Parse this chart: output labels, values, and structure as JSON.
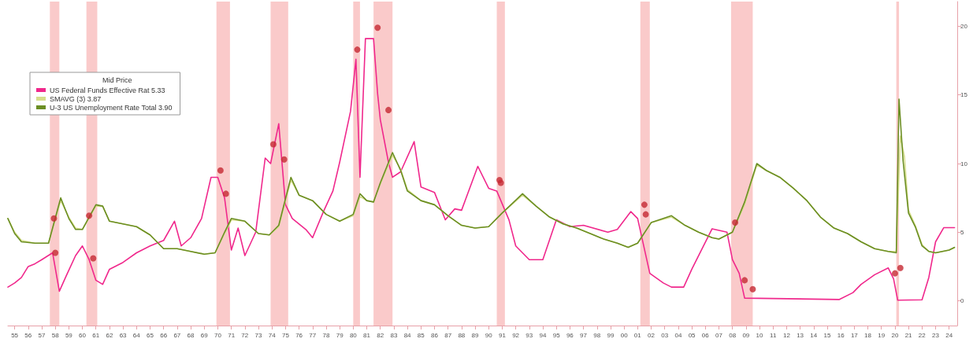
{
  "chart_data": {
    "type": "line",
    "legend_title": "Mid Price",
    "legend": "top left",
    "grid": false,
    "marker": "none",
    "line_style": "solid",
    "tick_labels": "xy",
    "xlim": [
      1954.5,
      2024.6
    ],
    "ylim": [
      -1.8,
      21.8
    ],
    "yticks": [
      0,
      5,
      10,
      15,
      20
    ],
    "xticks": [
      {
        "value": 1955,
        "label": "55"
      },
      {
        "value": 1956,
        "label": "56"
      },
      {
        "value": 1957,
        "label": "57"
      },
      {
        "value": 1958,
        "label": "58"
      },
      {
        "value": 1959,
        "label": "59"
      },
      {
        "value": 1960,
        "label": "60"
      },
      {
        "value": 1961,
        "label": "61"
      },
      {
        "value": 1962,
        "label": "62"
      },
      {
        "value": 1963,
        "label": "63"
      },
      {
        "value": 1964,
        "label": "64"
      },
      {
        "value": 1965,
        "label": "65"
      },
      {
        "value": 1966,
        "label": "66"
      },
      {
        "value": 1967,
        "label": "67"
      },
      {
        "value": 1968,
        "label": "68"
      },
      {
        "value": 1969,
        "label": "69"
      },
      {
        "value": 1970,
        "label": "70"
      },
      {
        "value": 1971,
        "label": "71"
      },
      {
        "value": 1972,
        "label": "72"
      },
      {
        "value": 1973,
        "label": "73"
      },
      {
        "value": 1974,
        "label": "74"
      },
      {
        "value": 1975,
        "label": "75"
      },
      {
        "value": 1976,
        "label": "76"
      },
      {
        "value": 1977,
        "label": "77"
      },
      {
        "value": 1978,
        "label": "78"
      },
      {
        "value": 1979,
        "label": "79"
      },
      {
        "value": 1980,
        "label": "80"
      },
      {
        "value": 1981,
        "label": "81"
      },
      {
        "value": 1982,
        "label": "82"
      },
      {
        "value": 1983,
        "label": "83"
      },
      {
        "value": 1984,
        "label": "84"
      },
      {
        "value": 1985,
        "label": "85"
      },
      {
        "value": 1986,
        "label": "86"
      },
      {
        "value": 1987,
        "label": "87"
      },
      {
        "value": 1988,
        "label": "88"
      },
      {
        "value": 1989,
        "label": "89"
      },
      {
        "value": 1990,
        "label": "90"
      },
      {
        "value": 1991,
        "label": "91"
      },
      {
        "value": 1992,
        "label": "92"
      },
      {
        "value": 1993,
        "label": "93"
      },
      {
        "value": 1994,
        "label": "94"
      },
      {
        "value": 1995,
        "label": "95"
      },
      {
        "value": 1996,
        "label": "96"
      },
      {
        "value": 1997,
        "label": "97"
      },
      {
        "value": 1998,
        "label": "98"
      },
      {
        "value": 1999,
        "label": "99"
      },
      {
        "value": 2000,
        "label": "00"
      },
      {
        "value": 2001,
        "label": "01"
      },
      {
        "value": 2002,
        "label": "02"
      },
      {
        "value": 2003,
        "label": "03"
      },
      {
        "value": 2004,
        "label": "04"
      },
      {
        "value": 2005,
        "label": "05"
      },
      {
        "value": 2006,
        "label": "06"
      },
      {
        "value": 2007,
        "label": "07"
      },
      {
        "value": 2008,
        "label": "08"
      },
      {
        "value": 2009,
        "label": "09"
      },
      {
        "value": 2010,
        "label": "10"
      },
      {
        "value": 2011,
        "label": "11"
      },
      {
        "value": 2012,
        "label": "12"
      },
      {
        "value": 2013,
        "label": "13"
      },
      {
        "value": 2014,
        "label": "14"
      },
      {
        "value": 2015,
        "label": "15"
      },
      {
        "value": 2016,
        "label": "16"
      },
      {
        "value": 2017,
        "label": "17"
      },
      {
        "value": 2018,
        "label": "18"
      },
      {
        "value": 2019,
        "label": "19"
      },
      {
        "value": 2020,
        "label": "20"
      },
      {
        "value": 2021,
        "label": "21"
      },
      {
        "value": 2022,
        "label": "22"
      },
      {
        "value": 2023,
        "label": "23"
      },
      {
        "value": 2024,
        "label": "24"
      }
    ],
    "bands": [
      {
        "axis": "x",
        "from": 1957.6,
        "to": 1958.3,
        "color": "#f9c4c4"
      },
      {
        "axis": "x",
        "from": 1960.3,
        "to": 1961.1,
        "color": "#f9c4c4"
      },
      {
        "axis": "x",
        "from": 1969.9,
        "to": 1970.9,
        "color": "#f9c4c4"
      },
      {
        "axis": "x",
        "from": 1973.9,
        "to": 1975.2,
        "color": "#f9c4c4"
      },
      {
        "axis": "x",
        "from": 1980.0,
        "to": 1980.5,
        "color": "#f9c4c4"
      },
      {
        "axis": "x",
        "from": 1981.5,
        "to": 1982.9,
        "color": "#f9c4c4"
      },
      {
        "axis": "x",
        "from": 1990.6,
        "to": 1991.2,
        "color": "#f9c4c4"
      },
      {
        "axis": "x",
        "from": 2001.2,
        "to": 2001.9,
        "color": "#f9c4c4"
      },
      {
        "axis": "x",
        "from": 2007.9,
        "to": 2009.5,
        "color": "#f9c4c4"
      },
      {
        "axis": "x",
        "from": 2020.1,
        "to": 2020.3,
        "color": "#f9c4c4"
      }
    ],
    "series": [
      {
        "name": "US Federal Funds Effective Rat 5.33",
        "color": "#f0288c",
        "x": [
          1954.5,
          1955.0,
          1955.5,
          1956.0,
          1956.5,
          1957.0,
          1957.8,
          1958.3,
          1958.8,
          1959.5,
          1960.0,
          1960.5,
          1961.0,
          1961.5,
          1962.0,
          1963.0,
          1964.0,
          1965.0,
          1966.0,
          1966.8,
          1967.3,
          1968.0,
          1968.8,
          1969.5,
          1970.0,
          1970.5,
          1971.0,
          1971.5,
          1972.0,
          1972.8,
          1973.5,
          1973.9,
          1974.5,
          1975.0,
          1975.5,
          1976.5,
          1977.0,
          1977.8,
          1978.5,
          1979.0,
          1979.8,
          1980.2,
          1980.5,
          1980.9,
          1981.5,
          1981.8,
          1982.0,
          1982.6,
          1982.9,
          1983.5,
          1984.5,
          1985.0,
          1986.0,
          1986.8,
          1987.5,
          1988.0,
          1989.2,
          1990.0,
          1990.6,
          1991.5,
          1992.0,
          1993.0,
          1994.0,
          1995.0,
          1996.0,
          1997.0,
          1998.8,
          1999.5,
          2000.5,
          2001.0,
          2001.9,
          2002.9,
          2003.5,
          2004.4,
          2005.0,
          2006.5,
          2007.6,
          2008.0,
          2008.5,
          2008.9,
          2015.9,
          2016.9,
          2017.5,
          2018.5,
          2019.5,
          2019.9,
          2020.2,
          2022.0,
          2022.5,
          2023.0,
          2023.6,
          2024.4
        ],
        "values": [
          1.0,
          1.3,
          1.7,
          2.5,
          2.7,
          3.0,
          3.5,
          0.7,
          1.8,
          3.3,
          4.0,
          3.0,
          1.5,
          1.2,
          2.3,
          2.8,
          3.5,
          4.0,
          4.4,
          5.8,
          4.0,
          4.6,
          6.0,
          9.0,
          9.0,
          7.5,
          3.7,
          5.3,
          3.3,
          5.0,
          10.4,
          10.0,
          12.9,
          7.0,
          6.0,
          5.2,
          4.6,
          6.5,
          8.0,
          10.1,
          13.8,
          17.6,
          9.0,
          19.1,
          19.1,
          15.1,
          13.2,
          10.1,
          9.0,
          9.4,
          11.6,
          8.3,
          7.9,
          5.9,
          6.7,
          6.6,
          9.8,
          8.2,
          8.0,
          5.9,
          4.0,
          3.0,
          3.0,
          5.9,
          5.4,
          5.5,
          5.0,
          5.2,
          6.5,
          6.0,
          2.0,
          1.3,
          1.0,
          1.0,
          2.3,
          5.25,
          5.0,
          3.0,
          2.0,
          0.2,
          0.1,
          0.6,
          1.2,
          1.9,
          2.4,
          1.6,
          0.05,
          0.08,
          1.7,
          4.3,
          5.33,
          5.33
        ]
      },
      {
        "name": "SMAVG (3) 3.87",
        "color": "#d6de8c",
        "x": [
          1954.5,
          1955.0,
          1955.5,
          1956.5,
          1957.5,
          1958.4,
          1959.0,
          1959.5,
          1960.0,
          1961.0,
          1961.5,
          1962.0,
          1963.0,
          1964.0,
          1965.0,
          1966.0,
          1967.0,
          1968.0,
          1969.0,
          1969.8,
          1970.5,
          1971.0,
          1972.0,
          1973.0,
          1973.8,
          1974.5,
          1975.4,
          1976.0,
          1977.0,
          1978.0,
          1979.0,
          1980.0,
          1980.5,
          1981.0,
          1981.5,
          1982.0,
          1982.9,
          1983.5,
          1984.0,
          1985.0,
          1986.0,
          1987.0,
          1988.0,
          1989.0,
          1990.0,
          1991.0,
          1992.5,
          1993.5,
          1994.5,
          1995.5,
          1996.5,
          1997.5,
          1998.5,
          1999.5,
          2000.3,
          2001.0,
          2002.0,
          2003.5,
          2004.5,
          2005.5,
          2006.5,
          2007.0,
          2008.0,
          2008.9,
          2009.8,
          2010.5,
          2011.5,
          2012.5,
          2013.5,
          2014.5,
          2015.5,
          2016.5,
          2017.5,
          2018.5,
          2019.5,
          2020.1,
          2020.4,
          2020.7,
          2021.0,
          2021.5,
          2022.0,
          2022.5,
          2023.0,
          2023.5,
          2024.0,
          2024.4
        ],
        "values": [
          6.0,
          5.0,
          4.4,
          4.2,
          4.2,
          7.3,
          6.1,
          5.3,
          5.2,
          6.9,
          6.9,
          5.8,
          5.6,
          5.4,
          4.8,
          3.8,
          3.8,
          3.6,
          3.4,
          3.5,
          4.9,
          5.9,
          5.8,
          4.9,
          4.8,
          5.4,
          8.8,
          7.7,
          7.3,
          6.3,
          5.8,
          6.2,
          7.6,
          7.3,
          7.2,
          8.5,
          10.6,
          9.6,
          8.1,
          7.3,
          7.0,
          6.2,
          5.5,
          5.3,
          5.4,
          6.4,
          7.7,
          6.9,
          6.1,
          5.6,
          5.3,
          4.9,
          4.5,
          4.2,
          3.9,
          4.2,
          5.7,
          6.1,
          5.5,
          5.0,
          4.6,
          4.5,
          5.0,
          7.0,
          9.9,
          9.5,
          9.0,
          8.2,
          7.3,
          6.1,
          5.3,
          4.9,
          4.3,
          3.8,
          3.6,
          3.6,
          12.0,
          10.5,
          6.6,
          5.5,
          4.1,
          3.6,
          3.5,
          3.6,
          3.7,
          3.87
        ]
      },
      {
        "name": "U-3 US Unemployment Rate Total 3.90",
        "color": "#6b8e23",
        "x": [
          1954.5,
          1955.0,
          1955.5,
          1956.5,
          1957.5,
          1958.4,
          1959.0,
          1959.5,
          1960.0,
          1961.0,
          1961.5,
          1962.0,
          1963.0,
          1964.0,
          1965.0,
          1966.0,
          1967.0,
          1968.0,
          1969.0,
          1969.8,
          1970.5,
          1971.0,
          1972.0,
          1973.0,
          1973.8,
          1974.5,
          1975.4,
          1976.0,
          1977.0,
          1978.0,
          1979.0,
          1980.0,
          1980.5,
          1981.0,
          1981.5,
          1982.0,
          1982.9,
          1983.5,
          1984.0,
          1985.0,
          1986.0,
          1987.0,
          1988.0,
          1989.0,
          1990.0,
          1991.0,
          1992.5,
          1993.5,
          1994.5,
          1995.5,
          1996.5,
          1997.5,
          1998.5,
          1999.5,
          2000.3,
          2001.0,
          2002.0,
          2003.5,
          2004.5,
          2005.5,
          2006.5,
          2007.0,
          2008.0,
          2008.9,
          2009.8,
          2010.5,
          2011.5,
          2012.5,
          2013.5,
          2014.5,
          2015.5,
          2016.5,
          2017.5,
          2018.5,
          2019.5,
          2020.1,
          2020.3,
          2020.6,
          2021.0,
          2021.5,
          2022.0,
          2022.5,
          2023.0,
          2023.5,
          2024.0,
          2024.4
        ],
        "values": [
          6.0,
          4.9,
          4.3,
          4.2,
          4.2,
          7.5,
          6.0,
          5.2,
          5.2,
          7.0,
          6.9,
          5.8,
          5.6,
          5.4,
          4.8,
          3.8,
          3.8,
          3.6,
          3.4,
          3.5,
          5.0,
          6.0,
          5.8,
          4.9,
          4.8,
          5.5,
          9.0,
          7.7,
          7.3,
          6.3,
          5.8,
          6.3,
          7.8,
          7.3,
          7.2,
          8.6,
          10.8,
          9.5,
          8.0,
          7.3,
          7.0,
          6.2,
          5.5,
          5.3,
          5.4,
          6.4,
          7.8,
          6.9,
          6.1,
          5.6,
          5.3,
          4.9,
          4.5,
          4.2,
          3.9,
          4.2,
          5.7,
          6.2,
          5.5,
          5.0,
          4.6,
          4.5,
          5.0,
          7.2,
          10.0,
          9.5,
          9.0,
          8.2,
          7.3,
          6.1,
          5.3,
          4.9,
          4.3,
          3.8,
          3.6,
          3.5,
          14.7,
          10.2,
          6.4,
          5.4,
          4.0,
          3.6,
          3.5,
          3.6,
          3.7,
          3.9
        ]
      },
      {
        "type": "scatter",
        "marker": "circle",
        "color": "#c62832",
        "x": [
          1957.9,
          1958.0,
          1960.5,
          1960.8,
          1970.2,
          1970.6,
          1974.1,
          1974.9,
          1980.3,
          1981.8,
          1982.6,
          1990.8,
          1990.9,
          2001.5,
          2001.6,
          2008.2,
          2008.9,
          2009.5,
          2020.0,
          2020.4
        ],
        "values": [
          6.0,
          3.5,
          6.2,
          3.1,
          9.5,
          7.8,
          11.4,
          10.3,
          18.3,
          19.9,
          13.9,
          8.8,
          8.6,
          7.0,
          6.3,
          5.7,
          1.5,
          0.85,
          2.0,
          2.4
        ]
      }
    ]
  }
}
